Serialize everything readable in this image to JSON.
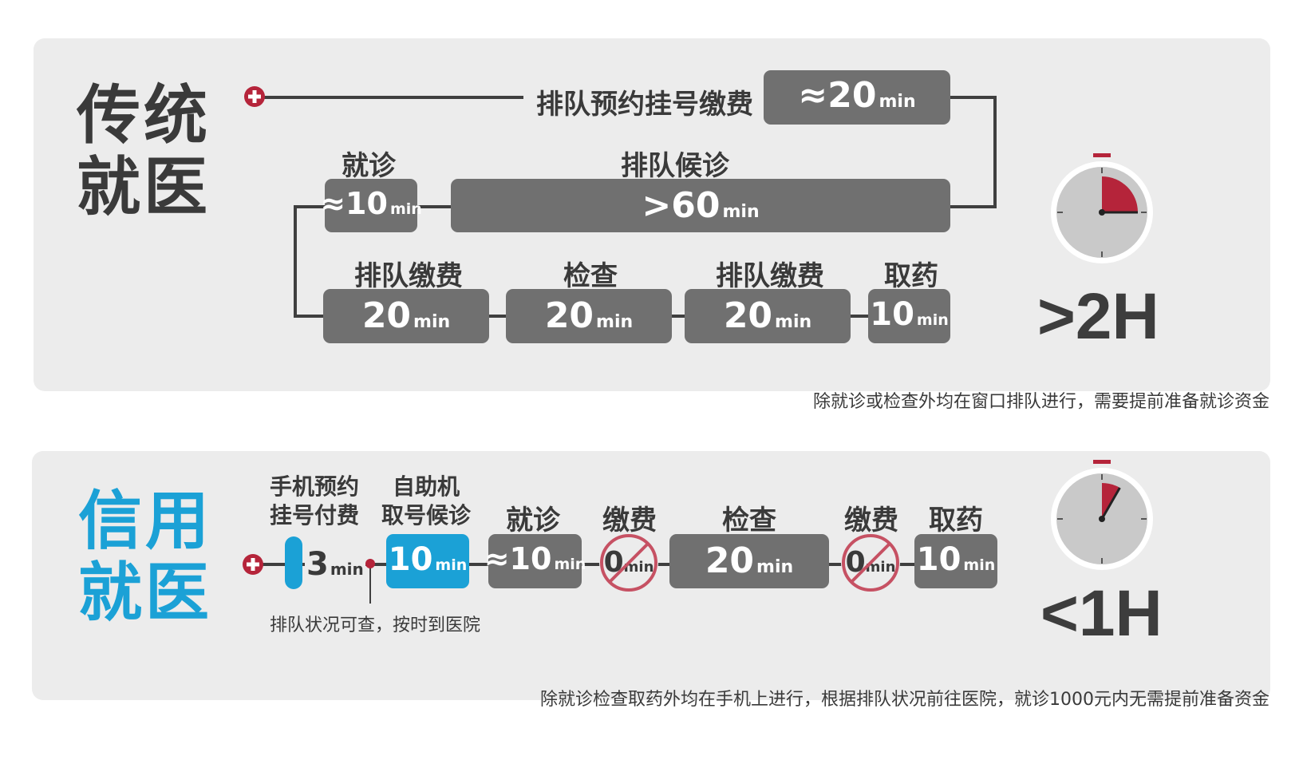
{
  "traditional": {
    "title_line1": "传统",
    "title_line2": "就医",
    "start_label": "排队预约挂号缴费",
    "start_box": {
      "num": "≈20",
      "unit": "min"
    },
    "row2_labels": [
      "就诊",
      "排队候诊"
    ],
    "row2_boxes": [
      {
        "num": "≈10",
        "unit": "min"
      },
      {
        "num": ">60",
        "unit": "min"
      }
    ],
    "row3_labels": [
      "排队缴费",
      "检查",
      "排队缴费",
      "取药"
    ],
    "row3_boxes": [
      {
        "num": "20",
        "unit": "min"
      },
      {
        "num": "20",
        "unit": "min"
      },
      {
        "num": "20",
        "unit": "min"
      },
      {
        "num": "10",
        "unit": "min"
      }
    ],
    "total": ">2H",
    "note": "除就诊或检查外均在窗口排队进行，需要提前准备就诊资金",
    "timer_fraction": 0.25
  },
  "credit": {
    "title_line1": "信用",
    "title_line2": "就医",
    "labels": {
      "step1_line1": "手机预约",
      "step1_line2": "挂号付费",
      "step2_line1": "自助机",
      "step2_line2": "取号候诊",
      "step3": "就诊",
      "step4": "缴费",
      "step5": "检查",
      "step6": "缴费",
      "step7": "取药"
    },
    "step1_time": {
      "num": "3",
      "unit": "min"
    },
    "boxes": [
      {
        "num": "10",
        "unit": "min"
      },
      {
        "num": "≈10",
        "unit": "min"
      },
      {
        "num": "0",
        "unit": "min"
      },
      {
        "num": "20",
        "unit": "min"
      },
      {
        "num": "0",
        "unit": "min"
      },
      {
        "num": "10",
        "unit": "min"
      }
    ],
    "marker_note": "排队状况可查，按时到医院",
    "total": "<1H",
    "note": "除就诊检查取药外均在手机上进行，根据排队状况前往医院，就诊1000元内无需提前准备资金",
    "timer_fraction": 0.083
  },
  "colors": {
    "gray_box": "#707070",
    "blue_box": "#1ba1d6",
    "accent_red": "#b5243a",
    "panel": "#ececec",
    "text_dark": "#3a3a3a"
  },
  "icons": [
    "medical-cross-icon",
    "stopwatch-icon",
    "prohibited-icon"
  ]
}
